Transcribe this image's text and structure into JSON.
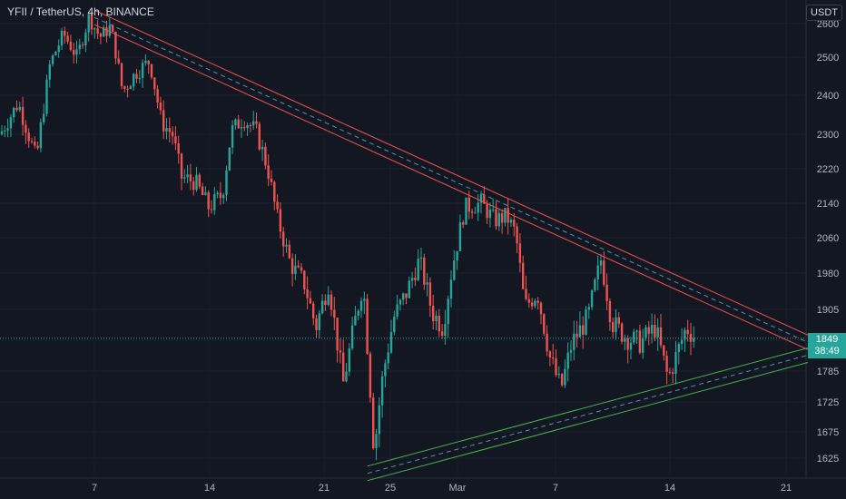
{
  "header": {
    "symbol_title": "YFII / TetherUS, 4h, BINANCE",
    "currency_button": "USDT"
  },
  "price_tag": {
    "price": "1849",
    "countdown": "38:49"
  },
  "colors": {
    "bull": "#26a69a",
    "bear": "#ef5350",
    "resistance": "#ef5350",
    "support": "#4caf50",
    "background": "#131722"
  },
  "chart_data": {
    "type": "candlestick",
    "title": "YFII / TetherUS, 4h, BINANCE",
    "ylim": [
      1600,
      2620
    ],
    "y_ticks": [
      "1625",
      "1675",
      "1725",
      "1785",
      "1845",
      "1905",
      "1980",
      "2060",
      "2140",
      "2220",
      "2300",
      "2400",
      "2500",
      "2600"
    ],
    "x_ticks": [
      "7",
      "14",
      "21",
      "25",
      "Mar",
      "7",
      "14",
      "21"
    ],
    "current_price": 1849,
    "series": [
      {
        "type": "close_path",
        "points": [
          [
            0,
            2300
          ],
          [
            20,
            2380
          ],
          [
            40,
            2240
          ],
          [
            55,
            2480
          ],
          [
            70,
            2570
          ],
          [
            85,
            2500
          ],
          [
            98,
            2620
          ],
          [
            110,
            2560
          ],
          [
            122,
            2590
          ],
          [
            135,
            2410
          ],
          [
            150,
            2460
          ],
          [
            165,
            2490
          ],
          [
            178,
            2330
          ],
          [
            190,
            2300
          ],
          [
            200,
            2200
          ],
          [
            215,
            2190
          ],
          [
            230,
            2130
          ],
          [
            245,
            2160
          ],
          [
            255,
            2310
          ],
          [
            268,
            2340
          ],
          [
            282,
            2310
          ],
          [
            295,
            2220
          ],
          [
            305,
            2110
          ],
          [
            320,
            2000
          ],
          [
            335,
            1960
          ],
          [
            348,
            1870
          ],
          [
            362,
            1960
          ],
          [
            378,
            1760
          ],
          [
            392,
            1890
          ],
          [
            400,
            1960
          ],
          [
            412,
            1640
          ],
          [
            422,
            1780
          ],
          [
            434,
            1890
          ],
          [
            448,
            1940
          ],
          [
            462,
            2010
          ],
          [
            476,
            1900
          ],
          [
            488,
            1870
          ],
          [
            498,
            1990
          ],
          [
            512,
            2130
          ],
          [
            530,
            2140
          ],
          [
            545,
            2100
          ],
          [
            558,
            2110
          ],
          [
            568,
            2070
          ],
          [
            578,
            1910
          ],
          [
            592,
            1940
          ],
          [
            606,
            1810
          ],
          [
            618,
            1750
          ],
          [
            630,
            1840
          ],
          [
            648,
            1890
          ],
          [
            662,
            2010
          ],
          [
            674,
            1880
          ],
          [
            690,
            1850
          ],
          [
            705,
            1840
          ],
          [
            722,
            1870
          ],
          [
            736,
            1770
          ],
          [
            746,
            1820
          ],
          [
            756,
            1870
          ],
          [
            766,
            1850
          ]
        ]
      }
    ],
    "trendlines": [
      {
        "name": "resistance",
        "from": [
          104,
          2640
        ],
        "to": [
          890,
          1855
        ]
      },
      {
        "name": "support",
        "from": [
          405,
          1610
        ],
        "to": [
          890,
          1830
        ]
      }
    ]
  }
}
